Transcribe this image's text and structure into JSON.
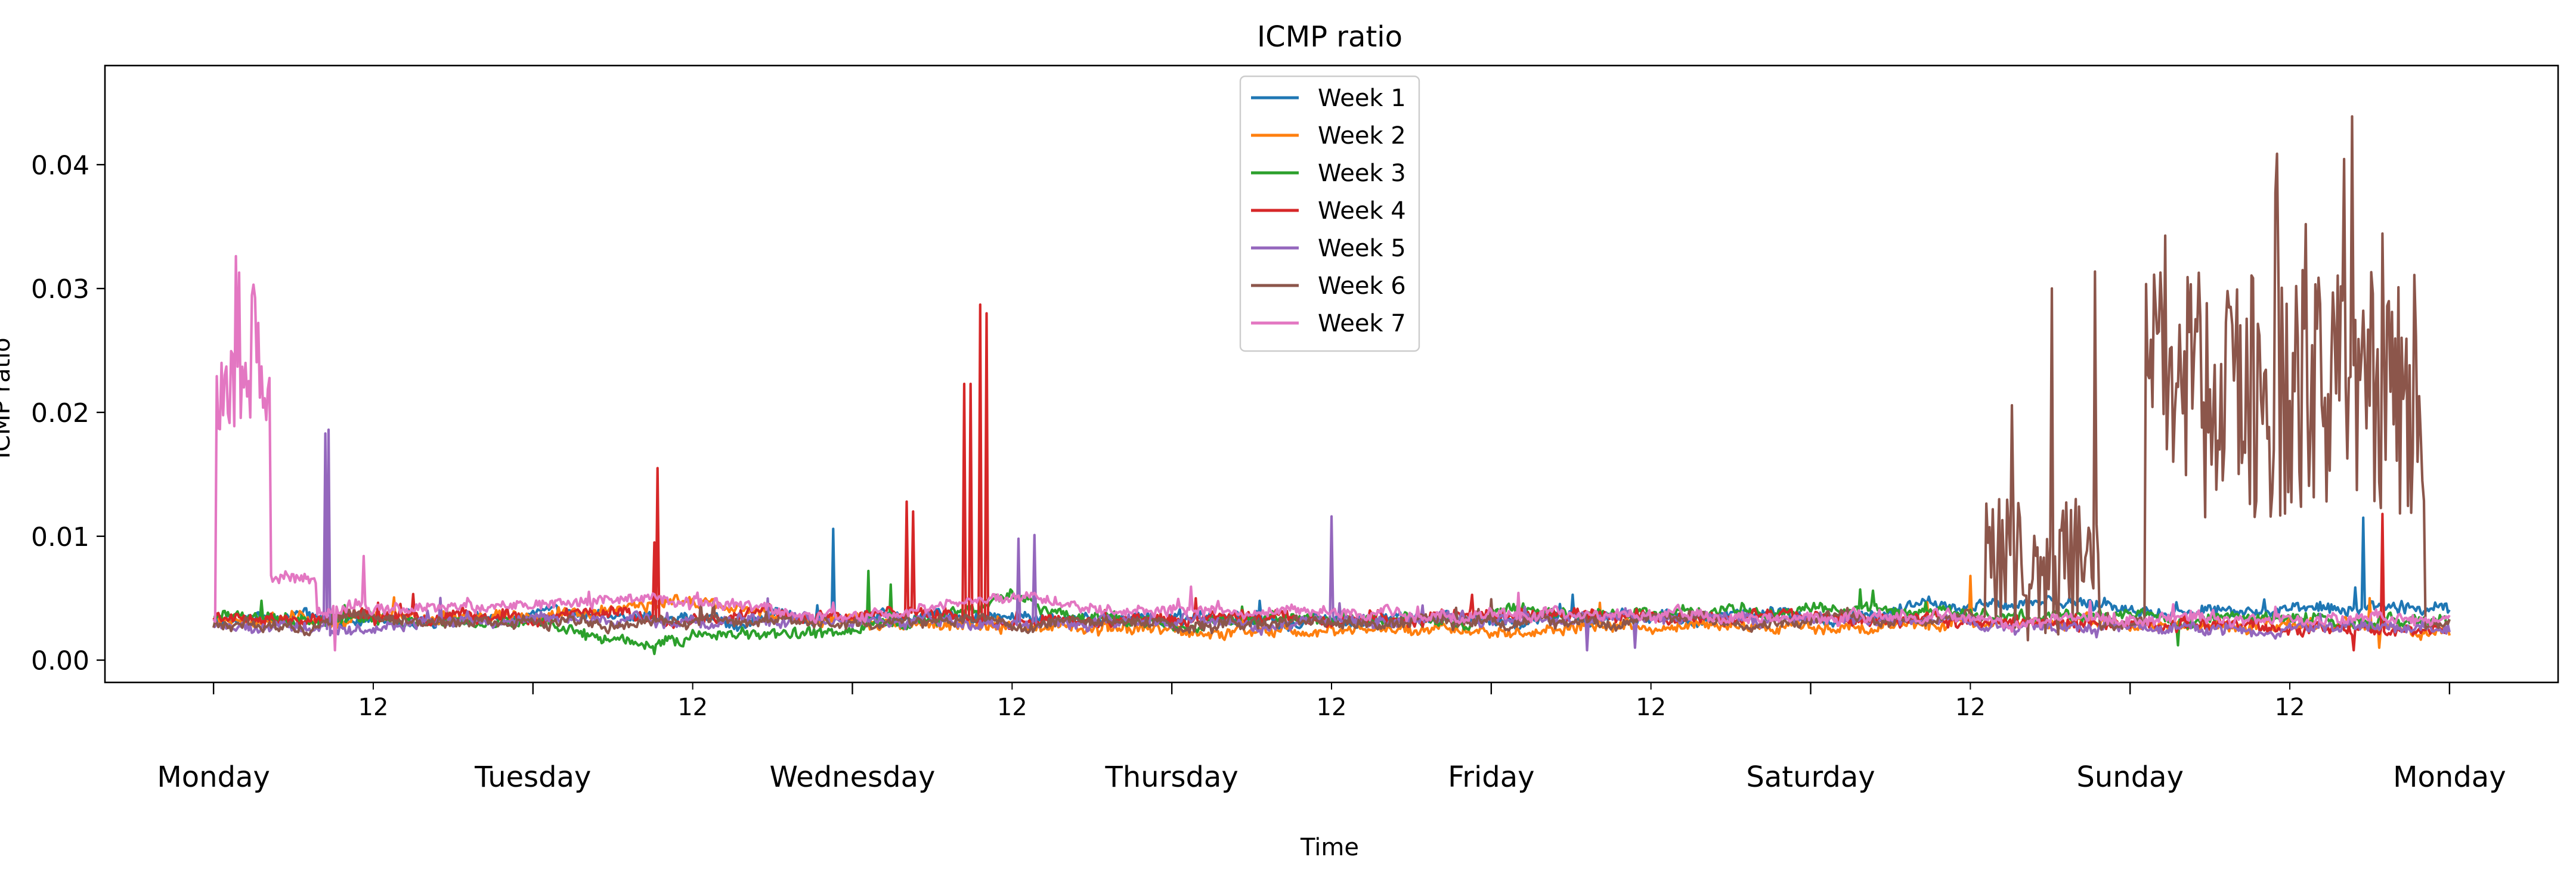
{
  "chart_data": {
    "type": "line",
    "title": "ICMP ratio",
    "xlabel": "Time",
    "ylabel": "ICMP ratio",
    "xlim": [
      -0.34,
      7.34
    ],
    "ylim": [
      -0.0018,
      0.048
    ],
    "y_ticks": [
      0.0,
      0.01,
      0.02,
      0.03,
      0.04
    ],
    "y_tick_labels": [
      "0.00",
      "0.01",
      "0.02",
      "0.03",
      "0.04"
    ],
    "x_major_ticks": [
      0,
      1,
      2,
      3,
      4,
      5,
      6,
      7
    ],
    "x_major_labels": [
      "Monday",
      "Tuesday",
      "Wednesday",
      "Thursday",
      "Friday",
      "Saturday",
      "Sunday",
      "Monday"
    ],
    "x_minor_ticks": [
      0.5,
      1.5,
      2.5,
      3.5,
      4.5,
      5.5,
      6.5
    ],
    "x_minor_labels": [
      "12",
      "12",
      "12",
      "12",
      "12",
      "12",
      "12"
    ],
    "legend": "upper-center",
    "grid": false,
    "series": [
      {
        "name": "Week 1",
        "color": "#1f77b4",
        "base": 0.0033,
        "profile": [
          [
            0,
            0.0032
          ],
          [
            1,
            0.0034
          ],
          [
            2,
            0.0034
          ],
          [
            3,
            0.0033
          ],
          [
            4,
            0.0032
          ],
          [
            5,
            0.0036
          ],
          [
            5.6,
            0.0048
          ],
          [
            6,
            0.0042
          ],
          [
            7,
            0.0038
          ]
        ],
        "spikes": [
          [
            1.94,
            0.0106
          ],
          [
            6.73,
            0.0115
          ]
        ]
      },
      {
        "name": "Week 2",
        "color": "#ff7f0e",
        "base": 0.003,
        "profile": [
          [
            0,
            0.0033
          ],
          [
            1,
            0.0034
          ],
          [
            1.4,
            0.0047
          ],
          [
            2,
            0.003
          ],
          [
            2.5,
            0.0027
          ],
          [
            3,
            0.0023
          ],
          [
            3.5,
            0.0025
          ],
          [
            4,
            0.0027
          ],
          [
            5,
            0.0026
          ],
          [
            6,
            0.003
          ],
          [
            7,
            0.0028
          ]
        ],
        "spikes": [
          [
            5.5,
            0.0068
          ],
          [
            6.75,
            0.005
          ],
          [
            6.78,
            0.001
          ]
        ]
      },
      {
        "name": "Week 3",
        "color": "#2ca02c",
        "base": 0.0032,
        "profile": [
          [
            0,
            0.0035
          ],
          [
            1,
            0.003
          ],
          [
            1.35,
            0.001
          ],
          [
            1.5,
            0.0021
          ],
          [
            2,
            0.0023
          ],
          [
            2.4,
            0.0045
          ],
          [
            2.5,
            0.0058
          ],
          [
            2.6,
            0.004
          ],
          [
            3,
            0.0032
          ],
          [
            4,
            0.0035
          ],
          [
            5,
            0.0042
          ],
          [
            6,
            0.0035
          ],
          [
            7,
            0.0032
          ]
        ],
        "spikes": [
          [
            2.05,
            0.0072
          ],
          [
            2.12,
            0.0061
          ],
          [
            1.38,
            0.0005
          ],
          [
            6.15,
            0.0012
          ]
        ]
      },
      {
        "name": "Week 4",
        "color": "#d62728",
        "base": 0.0035,
        "profile": [
          [
            0,
            0.0033
          ],
          [
            1,
            0.0035
          ],
          [
            2,
            0.0038
          ],
          [
            3,
            0.003
          ],
          [
            4,
            0.0036
          ],
          [
            5,
            0.0034
          ],
          [
            6,
            0.0028
          ],
          [
            7,
            0.0025
          ]
        ],
        "spikes": [
          [
            1.39,
            0.0155
          ],
          [
            1.38,
            0.0095
          ],
          [
            2.17,
            0.0128
          ],
          [
            2.19,
            0.012
          ],
          [
            2.35,
            0.0223
          ],
          [
            2.37,
            0.0223
          ],
          [
            2.4,
            0.0287
          ],
          [
            2.42,
            0.028
          ],
          [
            6.79,
            0.0118
          ],
          [
            6.7,
            0.0008
          ]
        ]
      },
      {
        "name": "Week 5",
        "color": "#9467bd",
        "base": 0.003,
        "profile": [
          [
            0,
            0.0027
          ],
          [
            1,
            0.0032
          ],
          [
            2,
            0.003
          ],
          [
            3,
            0.0032
          ],
          [
            4,
            0.0033
          ],
          [
            5,
            0.0034
          ],
          [
            6,
            0.0028
          ],
          [
            7,
            0.0026
          ]
        ],
        "spikes": [
          [
            0.35,
            0.0183
          ],
          [
            0.36,
            0.0186
          ],
          [
            2.52,
            0.0098
          ],
          [
            2.57,
            0.0101
          ],
          [
            3.5,
            0.0116
          ],
          [
            4.3,
            0.0008
          ],
          [
            4.45,
            0.001
          ]
        ]
      },
      {
        "name": "Week 6",
        "color": "#8c564b",
        "base": 0.003,
        "profile": [
          [
            0,
            0.003
          ],
          [
            1,
            0.0031
          ],
          [
            2,
            0.0032
          ],
          [
            3,
            0.003
          ],
          [
            4,
            0.003
          ],
          [
            5,
            0.0034
          ],
          [
            5.55,
            0.0035
          ],
          [
            6,
            0.0028
          ],
          [
            7,
            0.003
          ]
        ],
        "bursts": [
          [
            5.55,
            5.9,
            0.005,
            0.032,
            0.012
          ],
          [
            6.05,
            6.92,
            0.0175,
            0.046,
            0.02
          ]
        ]
      },
      {
        "name": "Week 7",
        "color": "#e377c2",
        "base": 0.004,
        "profile": [
          [
            0,
            0.0035
          ],
          [
            1,
            0.0043
          ],
          [
            1.3,
            0.005
          ],
          [
            2,
            0.0035
          ],
          [
            2.5,
            0.0053
          ],
          [
            3,
            0.004
          ],
          [
            4,
            0.0035
          ],
          [
            5,
            0.0036
          ],
          [
            6,
            0.0034
          ],
          [
            7,
            0.0032
          ]
        ],
        "bursts": [
          [
            0.01,
            0.18,
            0.0205,
            0.033,
            0.0065
          ],
          [
            0.18,
            0.32,
            0.0065,
            0.0075,
            0.001
          ]
        ],
        "spikes": [
          [
            0.47,
            0.0084
          ],
          [
            0.38,
            0.0008
          ]
        ]
      }
    ]
  }
}
